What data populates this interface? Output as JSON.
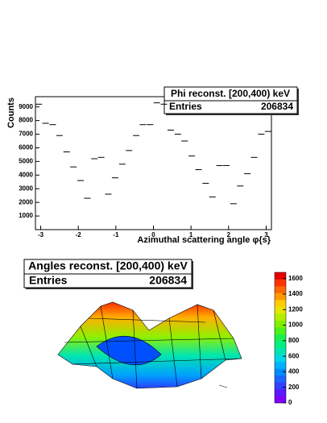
{
  "chart_data": [
    {
      "type": "scatter",
      "stats_title": "Phi reconst. [200,400) keV",
      "entries_label": "Entries",
      "entries_value": "206834",
      "xlabel": "Azimuthal scattering angle φ{s}",
      "ylabel": "Counts",
      "x": [
        -3.05,
        -2.87,
        -2.68,
        -2.5,
        -2.31,
        -2.13,
        -1.94,
        -1.76,
        -1.57,
        -1.39,
        -1.2,
        -1.02,
        -0.83,
        -0.65,
        -0.46,
        -0.28,
        -0.09,
        0.09,
        0.28,
        0.46,
        0.65,
        0.83,
        1.02,
        1.2,
        1.39,
        1.57,
        1.76,
        1.94,
        2.13,
        2.31,
        2.5,
        2.68,
        2.87,
        3.05
      ],
      "series": [
        {
          "color": "#000000",
          "values": [
            9200,
            7800,
            7700,
            6900,
            5700,
            4600,
            3600,
            2300,
            5200,
            5300,
            2600,
            3800,
            4800,
            5800,
            6900,
            7700,
            7700,
            9300,
            9200,
            7300,
            7000,
            6500,
            5400,
            4400,
            3400,
            2400,
            4700,
            4700,
            1900,
            3200,
            4100,
            5300,
            7000,
            7200
          ]
        }
      ],
      "xlim": [
        -3.14,
        3.14
      ],
      "xticks": [
        -3,
        -2,
        -1,
        0,
        1,
        2,
        3
      ],
      "ylim": [
        0,
        9750
      ],
      "yticks": [
        1000,
        2000,
        3000,
        4000,
        5000,
        6000,
        7000,
        8000,
        9000
      ]
    },
    {
      "type": "surface",
      "stats_title": "Angles reconst. [200,400) keV",
      "entries_label": "Entries",
      "entries_value": "206834",
      "zlim": [
        0,
        1680
      ],
      "zticks": [
        0,
        200,
        400,
        600,
        800,
        1000,
        1200,
        1400,
        1600
      ],
      "palette": [
        "#7f00ff",
        "#5a19ff",
        "#3340ff",
        "#1a66ff",
        "#008cff",
        "#00b2ff",
        "#00d8e6",
        "#00e6b3",
        "#00f080",
        "#1af04d",
        "#4cf01a",
        "#80f000",
        "#b3ee00",
        "#e6e600",
        "#ffcc00",
        "#ff9900",
        "#ff6600",
        "#ff3300",
        "#e60000"
      ]
    }
  ]
}
